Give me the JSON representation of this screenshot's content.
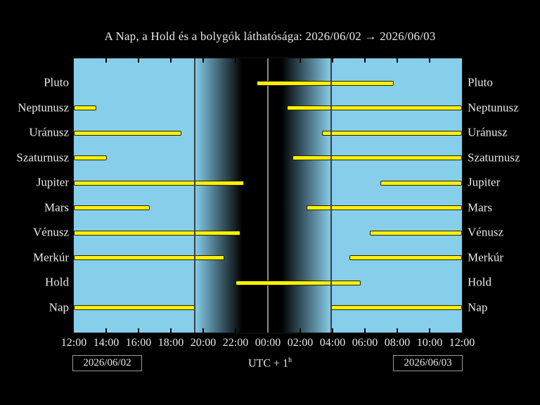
{
  "title": "A Nap, a Hold és a bolygók láthatósága: 2026/06/02 → 2026/06/03",
  "x_axis": {
    "tick_labels": [
      "12:00",
      "14:00",
      "16:00",
      "18:00",
      "20:00",
      "22:00",
      "00:00",
      "02:00",
      "04:00",
      "06:00",
      "08:00",
      "10:00",
      "12:00"
    ],
    "tick_interval_hours": 2
  },
  "footer": {
    "left_date": "2026/06/02",
    "right_date": "2026/06/03",
    "timezone_base": "UTC + 1",
    "timezone_exponent": "h"
  },
  "colors": {
    "page_background": "#000000",
    "day_sky": "#87CEEB",
    "night_sky": "#000000",
    "bar_fill": "#FFF100",
    "bar_border": "#222200",
    "text": "#E8E8E8",
    "midnight_line": "#8A8A8A",
    "sun_event_line": "#3D3D3D",
    "tick": "#000000",
    "date_box_border": "#9A9A9A",
    "frame": "#0B0B0B"
  },
  "chart_data": {
    "type": "gantt",
    "title": "A Nap, a Hold és a bolygók láthatósága: 2026/06/02 → 2026/06/03",
    "x_unit": "hours_after_12:00_local_UTC+1",
    "x_range": [
      0,
      24
    ],
    "grid": "off",
    "legend": "none",
    "rows": [
      {
        "label": "Pluto",
        "segments": [
          [
            11.3,
            19.78
          ]
        ]
      },
      {
        "label": "Neptunusz",
        "segments": [
          [
            0,
            1.4
          ],
          [
            13.17,
            24
          ]
        ]
      },
      {
        "label": "Uránusz",
        "segments": [
          [
            0,
            6.65
          ],
          [
            15.35,
            24
          ]
        ]
      },
      {
        "label": "Szaturnusz",
        "segments": [
          [
            0,
            2.05
          ],
          [
            13.52,
            24
          ]
        ]
      },
      {
        "label": "Jupiter",
        "segments": [
          [
            0,
            10.52
          ],
          [
            18.96,
            24
          ]
        ]
      },
      {
        "label": "Mars",
        "segments": [
          [
            0,
            4.7
          ],
          [
            14.39,
            24
          ]
        ]
      },
      {
        "label": "Vénusz",
        "segments": [
          [
            0,
            10.3
          ],
          [
            18.3,
            24
          ]
        ]
      },
      {
        "label": "Merkúr",
        "segments": [
          [
            0,
            9.3
          ],
          [
            17.04,
            24
          ]
        ]
      },
      {
        "label": "Hold",
        "segments": [
          [
            10.0,
            17.74
          ]
        ]
      },
      {
        "label": "Nap",
        "segments": [
          [
            0,
            7.48
          ],
          [
            15.91,
            24
          ]
        ]
      }
    ],
    "sun_lines": {
      "sunset_h": 7.48,
      "midnight_h": 12.0,
      "sunrise_h": 15.91
    },
    "twilight": {
      "dusk_full_dark_h": 10.43,
      "dawn_first_light_h": 12.83
    }
  }
}
